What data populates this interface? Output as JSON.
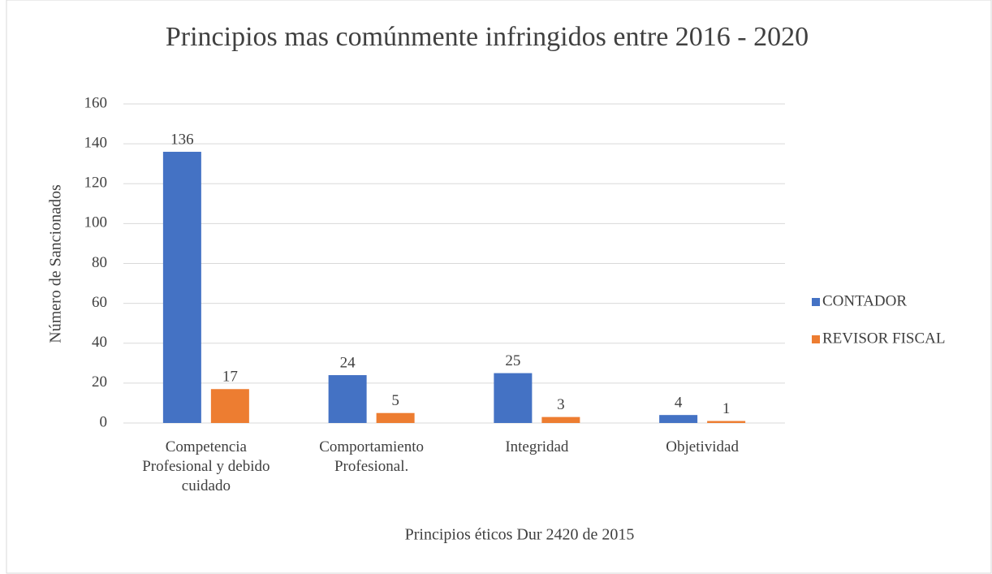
{
  "chart_data": {
    "type": "bar",
    "title": "Principios mas comúnmente infringidos entre 2016 - 2020",
    "x_label": "Principios éticos Dur 2420 de 2015",
    "y_label": "Número de  Sancionados",
    "categories": [
      "Competencia Profesional y debido cuidado",
      "Comportamiento Profesional.",
      "Integridad",
      "Objetividad"
    ],
    "series": [
      {
        "name": "CONTADOR",
        "color": "#4472c4",
        "values": [
          136,
          24,
          25,
          4
        ]
      },
      {
        "name": "REVISOR FISCAL",
        "color": "#ed7d31",
        "values": [
          17,
          5,
          3,
          1
        ]
      }
    ],
    "ylim": [
      0,
      160
    ],
    "yticks": [
      0,
      20,
      40,
      60,
      80,
      100,
      120,
      140,
      160
    ],
    "grid": true,
    "legend": "right"
  }
}
